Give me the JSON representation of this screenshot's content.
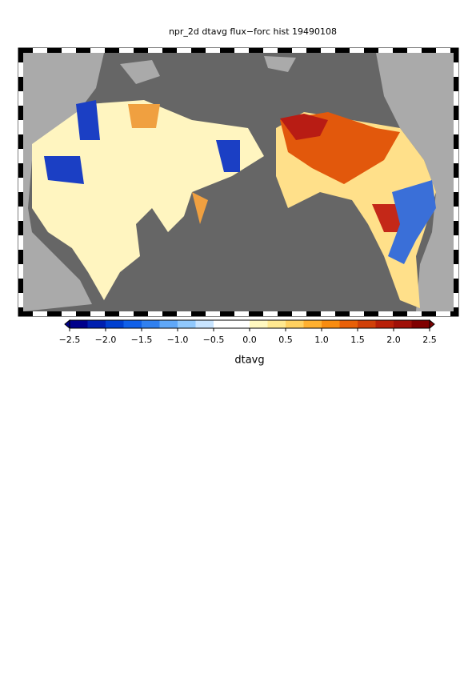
{
  "title": "npr_2d dtavg flux−forc hist 19490108",
  "colorbar": {
    "label": "dtavg",
    "range": [
      -2.5,
      2.5
    ],
    "ticks": [
      {
        "value": -2.5,
        "label": "−2.5"
      },
      {
        "value": -2.0,
        "label": "−2.0"
      },
      {
        "value": -1.5,
        "label": "−1.5"
      },
      {
        "value": -1.0,
        "label": "−1.0"
      },
      {
        "value": -0.5,
        "label": "−0.5"
      },
      {
        "value": 0,
        "label": "0.0"
      },
      0.5,
      {
        "value": 1,
        "label": "1.0"
      },
      1.5,
      {
        "value": 2,
        "label": "2.0"
      },
      2.5
    ]
  }
}
